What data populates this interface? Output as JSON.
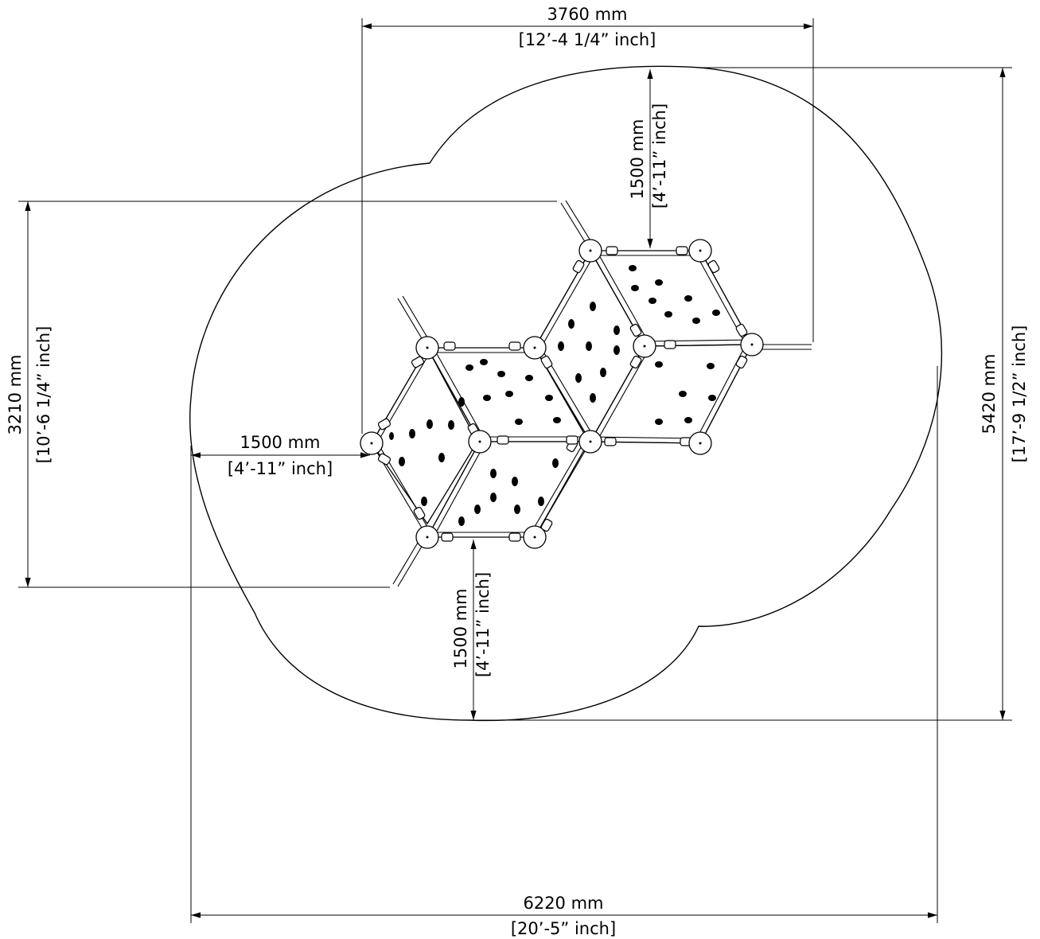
{
  "dimensions": {
    "top_width": {
      "metric": "3760 mm",
      "imperial": "[12’-4 1/4” inch]"
    },
    "top_clearance": {
      "metric": "1500 mm",
      "imperial": "[4’-11” inch]"
    },
    "left_height": {
      "metric": "3210 mm",
      "imperial": "[10’-6 1/4” inch]"
    },
    "left_clearance": {
      "metric": "1500 mm",
      "imperial": "[4’-11” inch]"
    },
    "right_height": {
      "metric": "5420 mm",
      "imperial": "[17’-9 1/2” inch]"
    },
    "bottom_clearance": {
      "metric": "1500 mm",
      "imperial": "[4’-11” inch]"
    },
    "bottom_width": {
      "metric": "6220 mm",
      "imperial": "[20’-5” inch]"
    }
  },
  "colors": {
    "line": "#000000",
    "background": "#ffffff",
    "ball": "#ffffff"
  }
}
